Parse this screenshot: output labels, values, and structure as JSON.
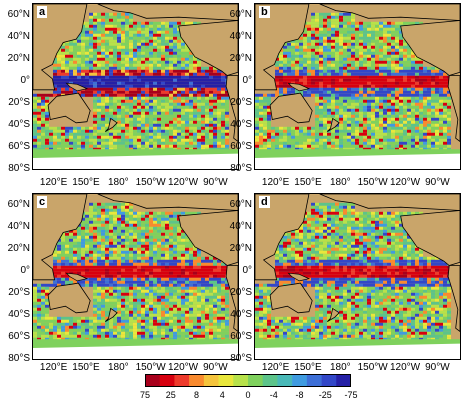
{
  "panels": [
    {
      "id": "a",
      "label": "a",
      "equator_sign": "neg"
    },
    {
      "id": "b",
      "label": "b",
      "equator_sign": "pos"
    },
    {
      "id": "c",
      "label": "c",
      "equator_sign": "pos"
    },
    {
      "id": "d",
      "label": "d",
      "equator_sign": "pos"
    }
  ],
  "lat_labels": [
    "60°N",
    "40°N",
    "20°N",
    "0°",
    "20°S",
    "40°S",
    "60°S",
    "80°S"
  ],
  "lon_labels": [
    "120°E",
    "150°E",
    "180°",
    "150°W",
    "120°W",
    "90°W"
  ],
  "colorbar": {
    "labels": [
      "75",
      "25",
      "8",
      "4",
      "0",
      "-4",
      "-8",
      "-25",
      "-75"
    ],
    "colors": [
      "#a8001c",
      "#d7000f",
      "#ee3b2c",
      "#f98a2e",
      "#f5c43c",
      "#e9e73c",
      "#b7e24a",
      "#7fd15d",
      "#5cc48a",
      "#49b9b8",
      "#3f9be0",
      "#3d6fd7",
      "#3247c8",
      "#2520a6"
    ]
  },
  "land_color": "#c9a56a",
  "ice_color": "#ffffff"
}
